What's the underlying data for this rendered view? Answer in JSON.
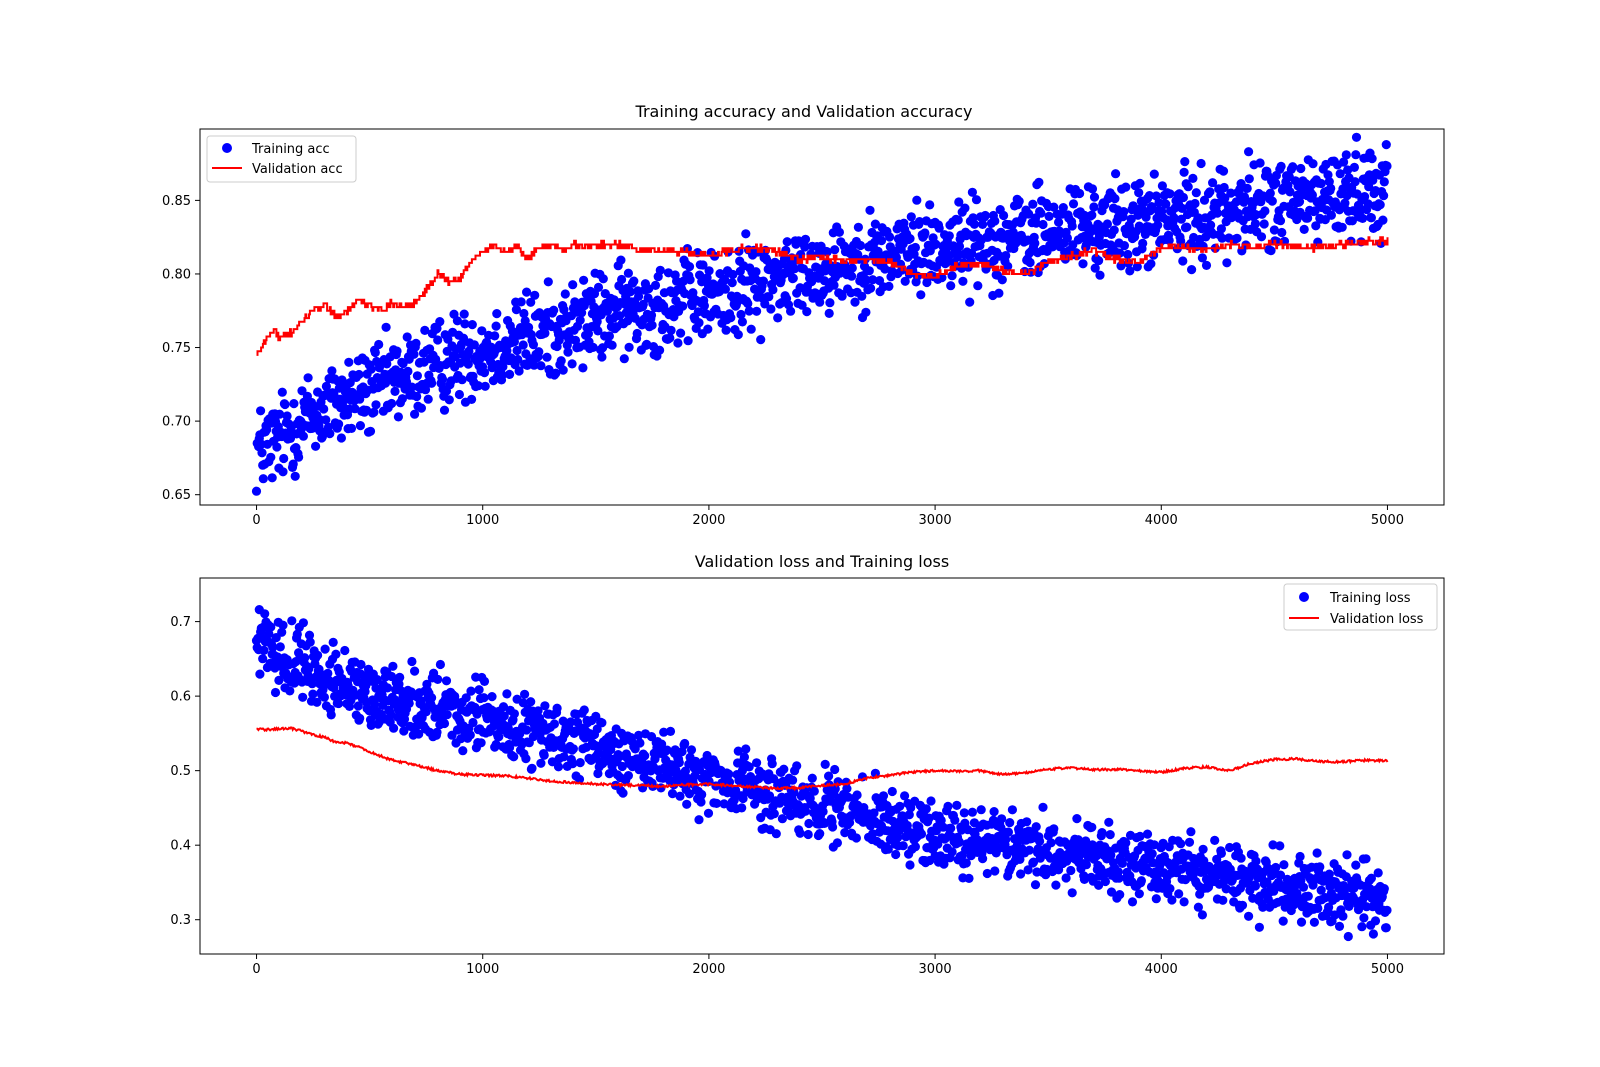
{
  "chart_data": [
    {
      "type": "scatter",
      "title": "Training accuracy and Validation accuracy",
      "xlabel": "",
      "ylabel": "",
      "xlim": [
        -250,
        5250
      ],
      "ylim": [
        0.643,
        0.8985
      ],
      "xticks": [
        0,
        1000,
        2000,
        3000,
        4000,
        5000
      ],
      "yticks": [
        0.65,
        0.7,
        0.75,
        0.8,
        0.85
      ],
      "ytick_labels": [
        "0.65",
        "0.70",
        "0.75",
        "0.80",
        "0.85"
      ],
      "legend_position": "upper-left",
      "series": [
        {
          "name": "Training acc",
          "kind": "scatter",
          "color": "#0000ff",
          "x": [
            0,
            100,
            200,
            300,
            400,
            500,
            600,
            700,
            800,
            900,
            1000,
            1100,
            1200,
            1300,
            1400,
            1500,
            1600,
            1700,
            1800,
            1900,
            2000,
            2100,
            2200,
            2300,
            2400,
            2500,
            2600,
            2700,
            2800,
            2900,
            3000,
            3100,
            3200,
            3300,
            3400,
            3500,
            3600,
            3700,
            3800,
            3900,
            4000,
            4100,
            4200,
            4300,
            4400,
            4500,
            4600,
            4700,
            4800,
            4900,
            5000
          ],
          "y": [
            0.68,
            0.688,
            0.7,
            0.708,
            0.715,
            0.72,
            0.727,
            0.732,
            0.738,
            0.744,
            0.748,
            0.752,
            0.757,
            0.76,
            0.764,
            0.77,
            0.774,
            0.777,
            0.78,
            0.782,
            0.785,
            0.788,
            0.792,
            0.797,
            0.8,
            0.804,
            0.807,
            0.81,
            0.813,
            0.816,
            0.818,
            0.82,
            0.822,
            0.824,
            0.826,
            0.828,
            0.83,
            0.831,
            0.832,
            0.834,
            0.836,
            0.838,
            0.84,
            0.843,
            0.846,
            0.848,
            0.85,
            0.852,
            0.854,
            0.857,
            0.86
          ],
          "noise": 0.015
        },
        {
          "name": "Validation acc",
          "kind": "line",
          "color": "#ff0000",
          "x": [
            0,
            20,
            50,
            80,
            100,
            150,
            200,
            250,
            300,
            350,
            400,
            450,
            500,
            550,
            600,
            650,
            700,
            750,
            800,
            850,
            900,
            950,
            1000,
            1050,
            1100,
            1150,
            1200,
            1250,
            1300,
            1350,
            1400,
            1450,
            1500,
            1600,
            1700,
            1800,
            1900,
            2000,
            2100,
            2200,
            2300,
            2400,
            2500,
            2600,
            2700,
            2800,
            2900,
            3000,
            3100,
            3200,
            3300,
            3400,
            3500,
            3600,
            3700,
            3800,
            3900,
            4000,
            4100,
            4200,
            4300,
            4400,
            4500,
            4600,
            4700,
            4800,
            4900,
            5000
          ],
          "y": [
            0.745,
            0.75,
            0.758,
            0.762,
            0.756,
            0.76,
            0.768,
            0.775,
            0.78,
            0.77,
            0.775,
            0.782,
            0.778,
            0.776,
            0.78,
            0.778,
            0.78,
            0.79,
            0.8,
            0.795,
            0.797,
            0.81,
            0.815,
            0.82,
            0.815,
            0.818,
            0.81,
            0.818,
            0.82,
            0.817,
            0.82,
            0.818,
            0.82,
            0.82,
            0.816,
            0.816,
            0.815,
            0.812,
            0.816,
            0.818,
            0.815,
            0.81,
            0.812,
            0.808,
            0.81,
            0.808,
            0.8,
            0.798,
            0.806,
            0.807,
            0.803,
            0.8,
            0.808,
            0.812,
            0.816,
            0.81,
            0.808,
            0.818,
            0.818,
            0.816,
            0.82,
            0.818,
            0.82,
            0.818,
            0.818,
            0.82,
            0.822,
            0.822
          ],
          "noise": 0.002
        }
      ]
    },
    {
      "type": "scatter",
      "title": "Validation loss and Training loss",
      "xlabel": "",
      "ylabel": "",
      "xlim": [
        -250,
        5250
      ],
      "ylim": [
        0.254,
        0.7585
      ],
      "xticks": [
        0,
        1000,
        2000,
        3000,
        4000,
        5000
      ],
      "yticks": [
        0.3,
        0.4,
        0.5,
        0.6,
        0.7
      ],
      "ytick_labels": [
        "0.3",
        "0.4",
        "0.5",
        "0.6",
        "0.7"
      ],
      "legend_position": "upper-right",
      "series": [
        {
          "name": "Training loss",
          "kind": "scatter",
          "color": "#0000ff",
          "x": [
            0,
            100,
            200,
            300,
            400,
            500,
            600,
            700,
            800,
            900,
            1000,
            1100,
            1200,
            1300,
            1400,
            1500,
            1600,
            1700,
            1800,
            1900,
            2000,
            2100,
            2200,
            2300,
            2400,
            2500,
            2600,
            2700,
            2800,
            2900,
            3000,
            3100,
            3200,
            3300,
            3400,
            3500,
            3600,
            3700,
            3800,
            3900,
            4000,
            4100,
            4200,
            4300,
            4400,
            4500,
            4600,
            4700,
            4800,
            4900,
            5000
          ],
          "y": [
            0.67,
            0.655,
            0.64,
            0.625,
            0.612,
            0.605,
            0.597,
            0.59,
            0.582,
            0.575,
            0.568,
            0.56,
            0.552,
            0.545,
            0.538,
            0.53,
            0.52,
            0.51,
            0.503,
            0.498,
            0.49,
            0.483,
            0.475,
            0.468,
            0.46,
            0.452,
            0.445,
            0.437,
            0.43,
            0.423,
            0.415,
            0.41,
            0.406,
            0.402,
            0.398,
            0.393,
            0.388,
            0.385,
            0.382,
            0.378,
            0.373,
            0.368,
            0.363,
            0.358,
            0.352,
            0.347,
            0.343,
            0.339,
            0.335,
            0.33,
            0.32
          ],
          "noise": 0.022
        },
        {
          "name": "Validation loss",
          "kind": "line",
          "color": "#ff0000",
          "x": [
            0,
            50,
            100,
            150,
            200,
            250,
            300,
            350,
            400,
            450,
            500,
            600,
            700,
            800,
            900,
            1000,
            1100,
            1200,
            1300,
            1400,
            1500,
            1600,
            1700,
            1800,
            1900,
            2000,
            2100,
            2200,
            2300,
            2400,
            2500,
            2600,
            2700,
            2800,
            2900,
            3000,
            3100,
            3200,
            3300,
            3400,
            3500,
            3600,
            3700,
            3800,
            3900,
            4000,
            4100,
            4200,
            4300,
            4400,
            4500,
            4600,
            4700,
            4800,
            4900,
            5000
          ],
          "y": [
            0.556,
            0.555,
            0.556,
            0.557,
            0.553,
            0.548,
            0.545,
            0.538,
            0.537,
            0.532,
            0.525,
            0.514,
            0.508,
            0.5,
            0.495,
            0.494,
            0.493,
            0.49,
            0.486,
            0.484,
            0.482,
            0.481,
            0.48,
            0.479,
            0.481,
            0.482,
            0.48,
            0.478,
            0.476,
            0.477,
            0.48,
            0.482,
            0.49,
            0.494,
            0.498,
            0.5,
            0.499,
            0.5,
            0.495,
            0.497,
            0.502,
            0.504,
            0.501,
            0.502,
            0.5,
            0.498,
            0.503,
            0.505,
            0.5,
            0.51,
            0.515,
            0.516,
            0.512,
            0.512,
            0.514,
            0.513
          ],
          "noise": 0.0015
        }
      ]
    }
  ]
}
